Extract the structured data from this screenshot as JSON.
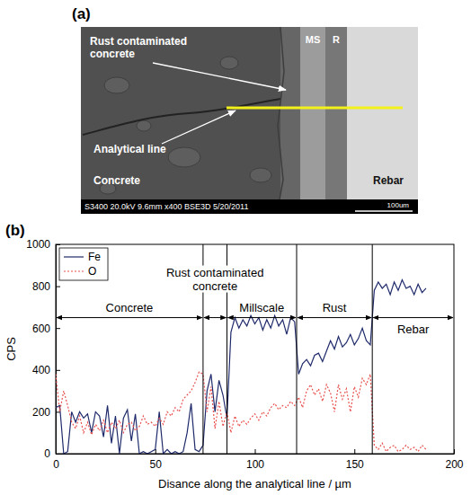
{
  "micrograph": {
    "panel_label": "(a)",
    "labels": {
      "rust_contaminated": "Rust contaminated concrete",
      "analytical_line": "Analytical line",
      "concrete": "Concrete",
      "millscale": "MS",
      "rust": "R",
      "rebar": "Rebar"
    },
    "info_bar": "S3400 20.0kV 9.6mm x400 BSE3D 5/20/2011",
    "scale_bar": "100um"
  },
  "chart_data": {
    "type": "line",
    "panel_label": "(b)",
    "xlabel": "Disance along the analytical line / µm",
    "ylabel": "CPS",
    "xlim": [
      0,
      200
    ],
    "xticks": [
      0,
      50,
      100,
      150,
      200
    ],
    "ylim": [
      0,
      1000
    ],
    "yticks": [
      0,
      200,
      400,
      600,
      800,
      1000
    ],
    "legend": "upper left",
    "x": [
      0,
      2,
      4,
      6,
      8,
      10,
      12,
      14,
      16,
      18,
      20,
      22,
      24,
      26,
      28,
      30,
      32,
      34,
      36,
      38,
      40,
      42,
      44,
      46,
      48,
      50,
      52,
      54,
      56,
      58,
      60,
      62,
      64,
      66,
      68,
      70,
      72,
      74,
      76,
      78,
      80,
      82,
      84,
      86,
      88,
      90,
      92,
      94,
      96,
      98,
      100,
      102,
      104,
      106,
      108,
      110,
      112,
      114,
      116,
      118,
      120,
      122,
      124,
      126,
      128,
      130,
      132,
      134,
      136,
      138,
      140,
      142,
      144,
      146,
      148,
      150,
      152,
      154,
      156,
      158,
      160,
      162,
      164,
      166,
      168,
      170,
      172,
      174,
      176,
      178,
      180,
      182,
      184,
      186
    ],
    "series": [
      {
        "name": "Fe",
        "color": "#1f2a6b",
        "line_style": "solid",
        "values": [
          220,
          230,
          0,
          10,
          200,
          150,
          200,
          170,
          190,
          100,
          200,
          180,
          80,
          230,
          50,
          180,
          0,
          170,
          210,
          60,
          190,
          0,
          10,
          0,
          10,
          20,
          200,
          0,
          20,
          0,
          10,
          0,
          10,
          100,
          240,
          20,
          10,
          40,
          300,
          380,
          200,
          350,
          280,
          170,
          580,
          650,
          600,
          640,
          610,
          660,
          620,
          650,
          590,
          640,
          600,
          660,
          610,
          640,
          570,
          650,
          630,
          380,
          430,
          450,
          420,
          470,
          480,
          440,
          490,
          540,
          500,
          560,
          510,
          530,
          570,
          520,
          550,
          600,
          540,
          520,
          780,
          820,
          790,
          810,
          760,
          820,
          780,
          830,
          790,
          800,
          760,
          810,
          770,
          790
        ]
      },
      {
        "name": "O",
        "color": "#e8504e",
        "line_style": "dotted",
        "values": [
          380,
          200,
          300,
          230,
          150,
          120,
          180,
          100,
          150,
          90,
          140,
          110,
          160,
          100,
          150,
          120,
          160,
          100,
          140,
          150,
          110,
          130,
          180,
          140,
          150,
          130,
          170,
          140,
          200,
          180,
          220,
          200,
          260,
          280,
          300,
          340,
          390,
          380,
          200,
          320,
          120,
          250,
          130,
          200,
          100,
          180,
          130,
          160,
          140,
          170,
          190,
          160,
          200,
          180,
          220,
          240,
          210,
          230,
          220,
          250,
          230,
          270,
          220,
          300,
          330,
          280,
          310,
          250,
          330,
          290,
          200,
          330,
          260,
          310,
          200,
          320,
          270,
          360,
          330,
          380,
          40,
          20,
          50,
          10,
          30,
          40,
          10,
          20,
          40,
          20,
          30,
          10,
          40,
          20
        ]
      }
    ],
    "regions": [
      {
        "label": "Concrete",
        "start": 0,
        "end": 74
      },
      {
        "label": "Rust contaminated concrete",
        "start": 74,
        "end": 86
      },
      {
        "label": "Millscale",
        "start": 86,
        "end": 121
      },
      {
        "label": "Rust",
        "start": 121,
        "end": 159
      },
      {
        "label": "Rebar",
        "start": 159,
        "end": 200
      }
    ],
    "arrow_y": 650
  }
}
